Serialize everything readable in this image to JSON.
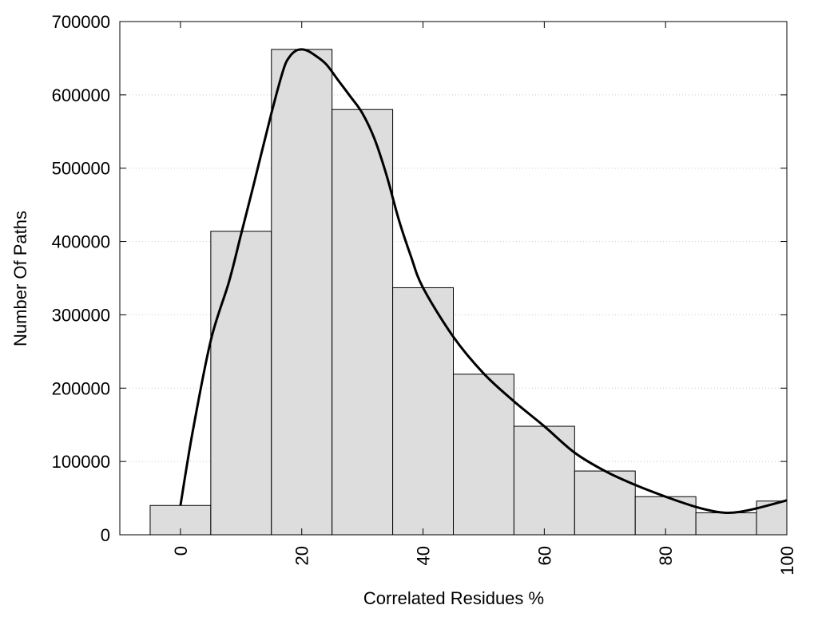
{
  "chart_data": {
    "type": "bar",
    "title": "",
    "xlabel": "Correlated Residues %",
    "ylabel": "Number Of Paths",
    "bar_width": 10,
    "x": [
      0,
      10,
      20,
      30,
      40,
      50,
      60,
      70,
      80,
      90,
      100
    ],
    "values": [
      40000,
      414000,
      662000,
      580000,
      337000,
      219000,
      148000,
      87000,
      52000,
      30000,
      46000
    ],
    "xlim": [
      -10,
      100
    ],
    "ylim": [
      0,
      700000
    ],
    "xticks": [
      0,
      20,
      40,
      60,
      80,
      100
    ],
    "yticks": [
      0,
      100000,
      200000,
      300000,
      400000,
      500000,
      600000,
      700000
    ],
    "grid": "horizontal dotted",
    "legend": "none",
    "bar_color": "#dddddd",
    "series": [
      {
        "type": "line",
        "x": [
          0,
          2,
          5,
          8,
          10,
          12,
          15,
          17,
          18,
          19,
          20,
          21,
          22,
          24,
          26,
          28,
          30,
          32,
          34,
          36,
          38,
          40,
          45,
          50,
          55,
          60,
          65,
          70,
          75,
          80,
          85,
          88,
          90,
          92,
          95,
          100
        ],
        "values": [
          40000,
          140000,
          265000,
          345000,
          410000,
          475000,
          575000,
          635000,
          652000,
          660000,
          662000,
          660000,
          655000,
          642000,
          620000,
          598000,
          575000,
          540000,
          490000,
          430000,
          380000,
          337000,
          270000,
          220000,
          182000,
          148000,
          112000,
          87000,
          68000,
          52000,
          38000,
          32000,
          30000,
          31000,
          36000,
          47000
        ]
      }
    ]
  }
}
